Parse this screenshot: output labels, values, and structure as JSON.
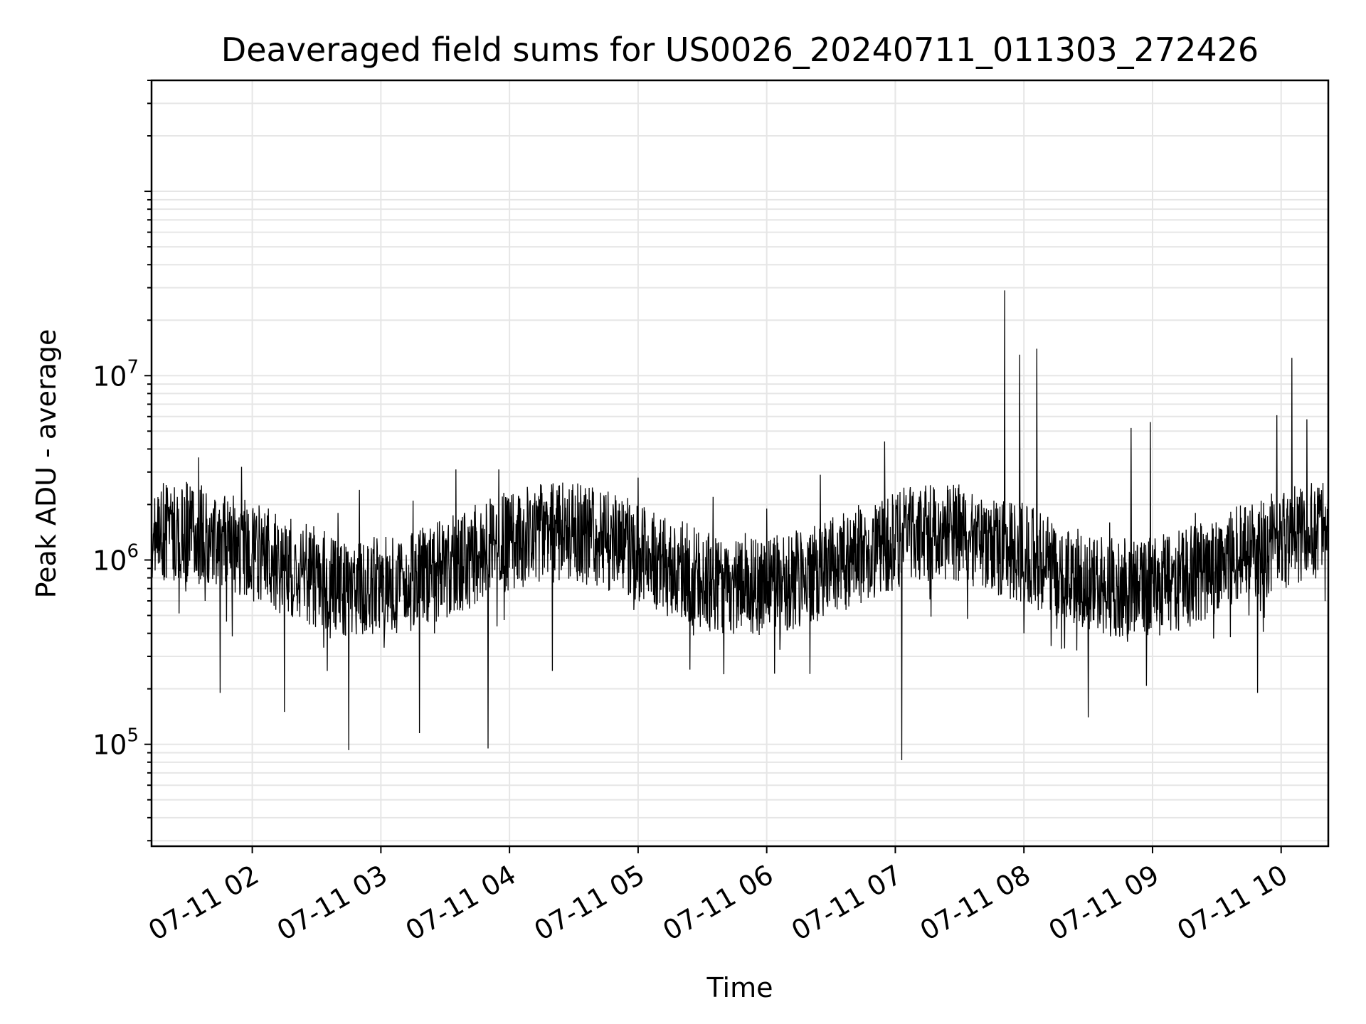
{
  "chart_data": {
    "type": "line",
    "title": "Deaveraged field sums for US0026_20240711_011303_272426",
    "xlabel": "Time",
    "ylabel": "Peak ADU - average",
    "x_range": [
      "2024-07-11 01:13",
      "2024-07-11 10:22"
    ],
    "y_scale": "log",
    "ylim": [
      28000,
      400000000
    ],
    "grid": true,
    "colors": {
      "line": "#000000",
      "grid": "#e6e6e6",
      "axes": "#000000"
    },
    "x_ticks": [
      "07-11 02",
      "07-11 03",
      "07-11 04",
      "07-11 05",
      "07-11 06",
      "07-11 07",
      "07-11 08",
      "07-11 09",
      "07-11 10"
    ],
    "y_ticks": [
      {
        "value": 100000,
        "base": "10",
        "exp": "5"
      },
      {
        "value": 1000000,
        "base": "10",
        "exp": "6"
      },
      {
        "value": 10000000,
        "base": "10",
        "exp": "7"
      }
    ],
    "series": [
      {
        "points": [
          [
            "2024-07-11 01:13",
            800000
          ],
          [
            "2024-07-11 01:19",
            1400000
          ],
          [
            "2024-07-11 01:25",
            2200000
          ],
          [
            "2024-07-11 01:30",
            950000
          ],
          [
            "2024-07-11 01:35",
            3600000
          ],
          [
            "2024-07-11 01:38",
            600000
          ],
          [
            "2024-07-11 01:45",
            190000
          ],
          [
            "2024-07-11 01:50",
            900000
          ],
          [
            "2024-07-11 01:55",
            3200000
          ],
          [
            "2024-07-11 02:00",
            1100000
          ],
          [
            "2024-07-11 02:10",
            700000
          ],
          [
            "2024-07-11 02:15",
            150000
          ],
          [
            "2024-07-11 02:20",
            1200000
          ],
          [
            "2024-07-11 02:26",
            700000
          ],
          [
            "2024-07-11 02:30",
            900000
          ],
          [
            "2024-07-11 02:35",
            250000
          ],
          [
            "2024-07-11 02:40",
            1800000
          ],
          [
            "2024-07-11 02:45",
            93000
          ],
          [
            "2024-07-11 02:50",
            2400000
          ],
          [
            "2024-07-11 03:00",
            700000
          ],
          [
            "2024-07-11 03:10",
            900000
          ],
          [
            "2024-07-11 03:15",
            2100000
          ],
          [
            "2024-07-11 03:18",
            115000
          ],
          [
            "2024-07-11 03:25",
            400000
          ],
          [
            "2024-07-11 03:35",
            3100000
          ],
          [
            "2024-07-11 03:45",
            600000
          ],
          [
            "2024-07-11 03:50",
            95000
          ],
          [
            "2024-07-11 03:55",
            3100000
          ],
          [
            "2024-07-11 04:05",
            1000000
          ],
          [
            "2024-07-11 04:15",
            2000000
          ],
          [
            "2024-07-11 04:20",
            250000
          ],
          [
            "2024-07-11 04:30",
            1500000
          ],
          [
            "2024-07-11 04:40",
            1300000
          ],
          [
            "2024-07-11 05:00",
            2800000
          ],
          [
            "2024-07-11 05:10",
            1400000
          ],
          [
            "2024-07-11 05:25",
            900000
          ],
          [
            "2024-07-11 05:35",
            2200000
          ],
          [
            "2024-07-11 05:40",
            240000
          ],
          [
            "2024-07-11 05:50",
            1400000
          ],
          [
            "2024-07-11 06:00",
            1900000
          ],
          [
            "2024-07-11 06:10",
            1000000
          ],
          [
            "2024-07-11 06:25",
            2900000
          ],
          [
            "2024-07-11 06:40",
            1300000
          ],
          [
            "2024-07-11 06:50",
            1200000
          ],
          [
            "2024-07-11 06:55",
            4400000
          ],
          [
            "2024-07-11 07:00",
            1000000
          ],
          [
            "2024-07-11 07:03",
            82000
          ],
          [
            "2024-07-11 07:10",
            1500000
          ],
          [
            "2024-07-11 07:20",
            900000
          ],
          [
            "2024-07-11 07:35",
            1100000
          ],
          [
            "2024-07-11 07:45",
            700000
          ],
          [
            "2024-07-11 07:51",
            29000000
          ],
          [
            "2024-07-11 07:55",
            1300000
          ],
          [
            "2024-07-11 07:58",
            13000000
          ],
          [
            "2024-07-11 08:00",
            400000
          ],
          [
            "2024-07-11 08:06",
            14000000
          ],
          [
            "2024-07-11 08:10",
            800000
          ],
          [
            "2024-07-11 08:20",
            1200000
          ],
          [
            "2024-07-11 08:30",
            140000
          ],
          [
            "2024-07-11 08:40",
            1600000
          ],
          [
            "2024-07-11 08:50",
            5200000
          ],
          [
            "2024-07-11 08:59",
            5600000
          ],
          [
            "2024-07-11 09:10",
            1000000
          ],
          [
            "2024-07-11 09:20",
            1800000
          ],
          [
            "2024-07-11 09:30",
            900000
          ],
          [
            "2024-07-11 09:45",
            500000
          ],
          [
            "2024-07-11 09:49",
            190000
          ],
          [
            "2024-07-11 09:58",
            6100000
          ],
          [
            "2024-07-11 10:05",
            12500000
          ],
          [
            "2024-07-11 10:12",
            5800000
          ],
          [
            "2024-07-11 10:18",
            1700000
          ],
          [
            "2024-07-11 10:22",
            1200000
          ]
        ]
      }
    ]
  }
}
